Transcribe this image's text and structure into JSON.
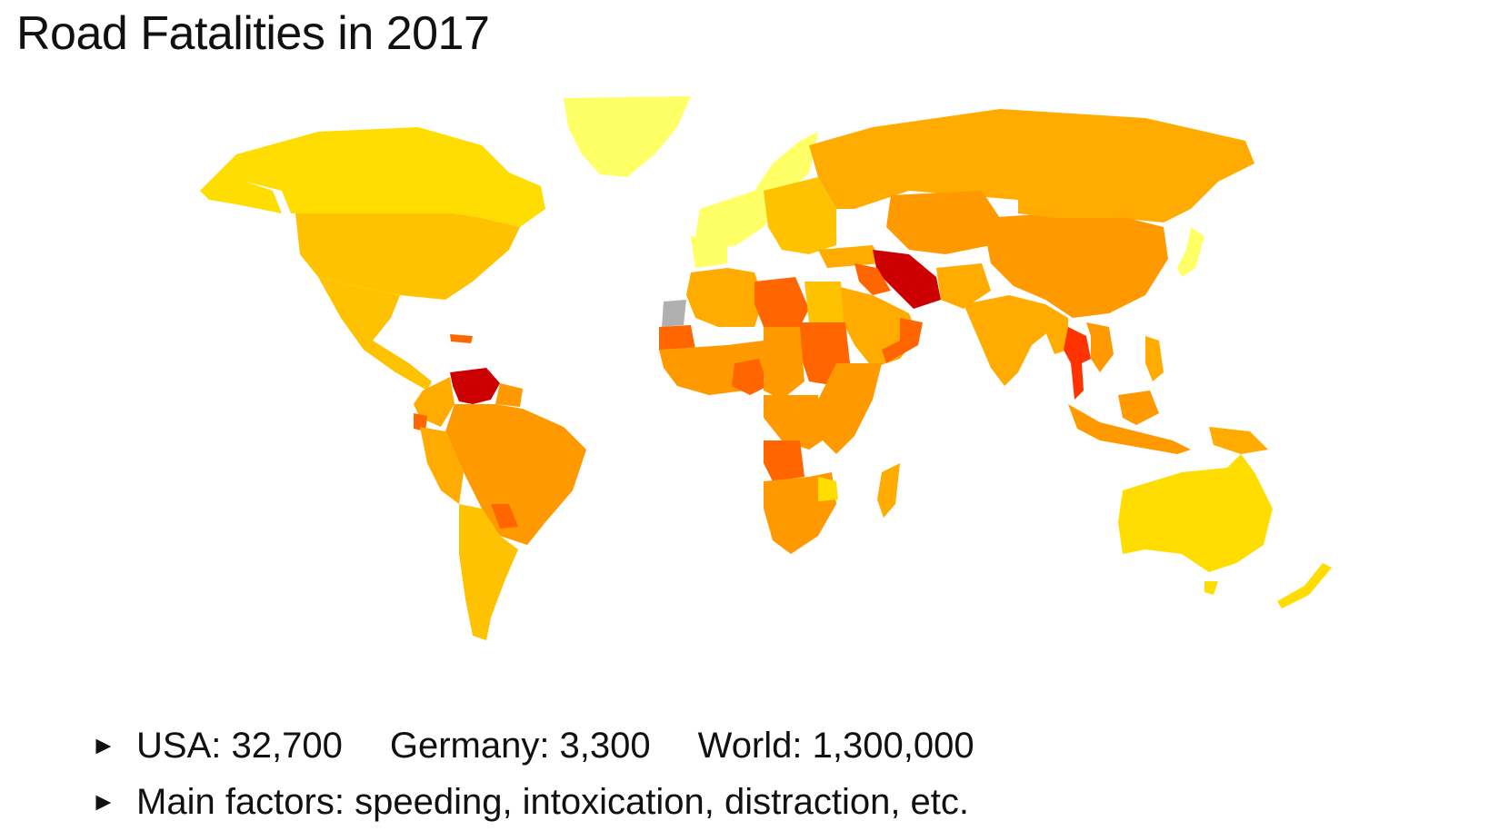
{
  "slide": {
    "title": "Road Fatalities in 2017"
  },
  "bullets": {
    "marker": "►",
    "stats": [
      {
        "label": "USA: 32,700"
      },
      {
        "label": "Germany: 3,300"
      },
      {
        "label": "World: 1,300,000"
      }
    ],
    "factors": "Main factors: speeding, intoxication, distraction, etc."
  },
  "map_colors": {
    "lightest": "#ffff66",
    "light": "#ffdd00",
    "mid_light": "#ffc200",
    "mid": "#ffab00",
    "mid_dark": "#ff9900",
    "dark": "#ff6600",
    "darker": "#ff3300",
    "darkest": "#cc0000",
    "no_data": "#b0b0b0"
  }
}
